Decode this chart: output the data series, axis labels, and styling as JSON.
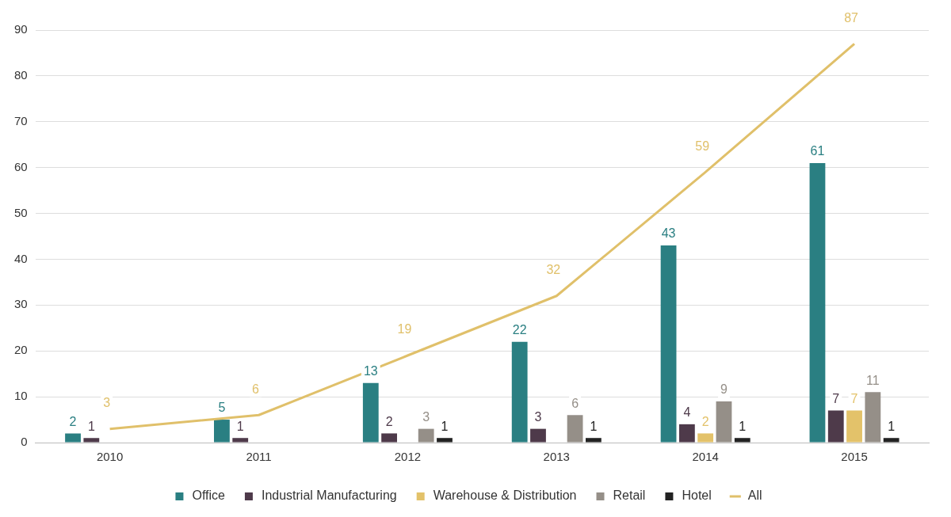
{
  "chart_data": {
    "type": "bar",
    "categories": [
      "2010",
      "2011",
      "2012",
      "2013",
      "2014",
      "2015"
    ],
    "series": [
      {
        "name": "Office",
        "color": "#2a7f82",
        "values": [
          2,
          5,
          13,
          22,
          43,
          61
        ]
      },
      {
        "name": "Industrial Manufacturing",
        "color": "#4e3a4a",
        "values": [
          1,
          1,
          2,
          3,
          4,
          7
        ]
      },
      {
        "name": "Warehouse & Distribution",
        "color": "#e3c26a",
        "values": [
          null,
          null,
          null,
          null,
          2,
          7
        ]
      },
      {
        "name": "Retail",
        "color": "#958f88",
        "values": [
          null,
          null,
          3,
          6,
          9,
          11
        ]
      },
      {
        "name": "Hotel",
        "color": "#222222",
        "values": [
          null,
          null,
          1,
          1,
          1,
          1
        ]
      },
      {
        "name": "All",
        "type": "line",
        "color": "#e0c06a",
        "values": [
          3,
          6,
          19,
          32,
          59,
          87
        ],
        "marker": "none",
        "line_style": "solid"
      }
    ],
    "ylim": [
      0,
      90
    ],
    "yticks": [
      0,
      10,
      20,
      30,
      40,
      50,
      60,
      70,
      80,
      90
    ],
    "grid": "y",
    "legend": "bottom",
    "data_labels": true
  }
}
